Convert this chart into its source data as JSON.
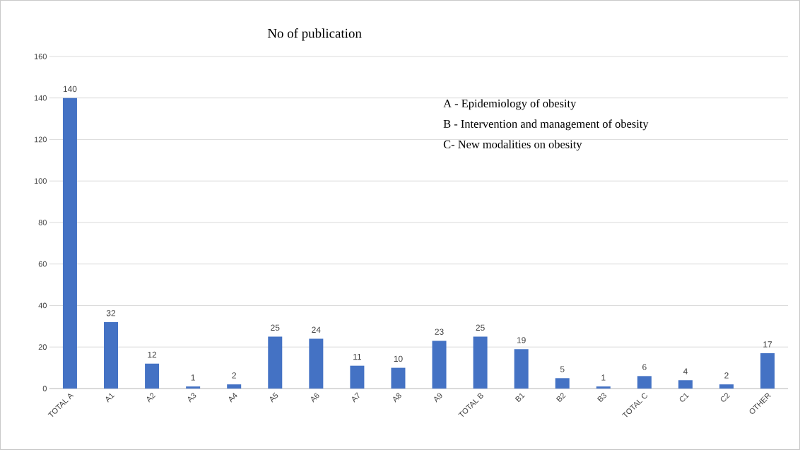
{
  "chart_data": {
    "type": "bar",
    "title": "No of publication",
    "categories": [
      "TOTAL A",
      "A1",
      "A2",
      "A3",
      "A4",
      "A5",
      "A6",
      "A7",
      "A8",
      "A9",
      "TOTAL B",
      "B1",
      "B2",
      "B3",
      "TOTAL C",
      "C1",
      "C2",
      "OTHER"
    ],
    "values": [
      140,
      32,
      12,
      1,
      2,
      25,
      24,
      11,
      10,
      23,
      25,
      19,
      5,
      1,
      6,
      4,
      2,
      17
    ],
    "color": "#4472c4",
    "ylim": [
      0,
      160
    ],
    "yticks": [
      0,
      20,
      40,
      60,
      80,
      100,
      120,
      140,
      160
    ],
    "grid": "y",
    "data_labels": true,
    "annotations": [
      "A - Epidemiology of obesity",
      "B - Intervention and management of obesity",
      "C- New modalities on obesity"
    ]
  }
}
